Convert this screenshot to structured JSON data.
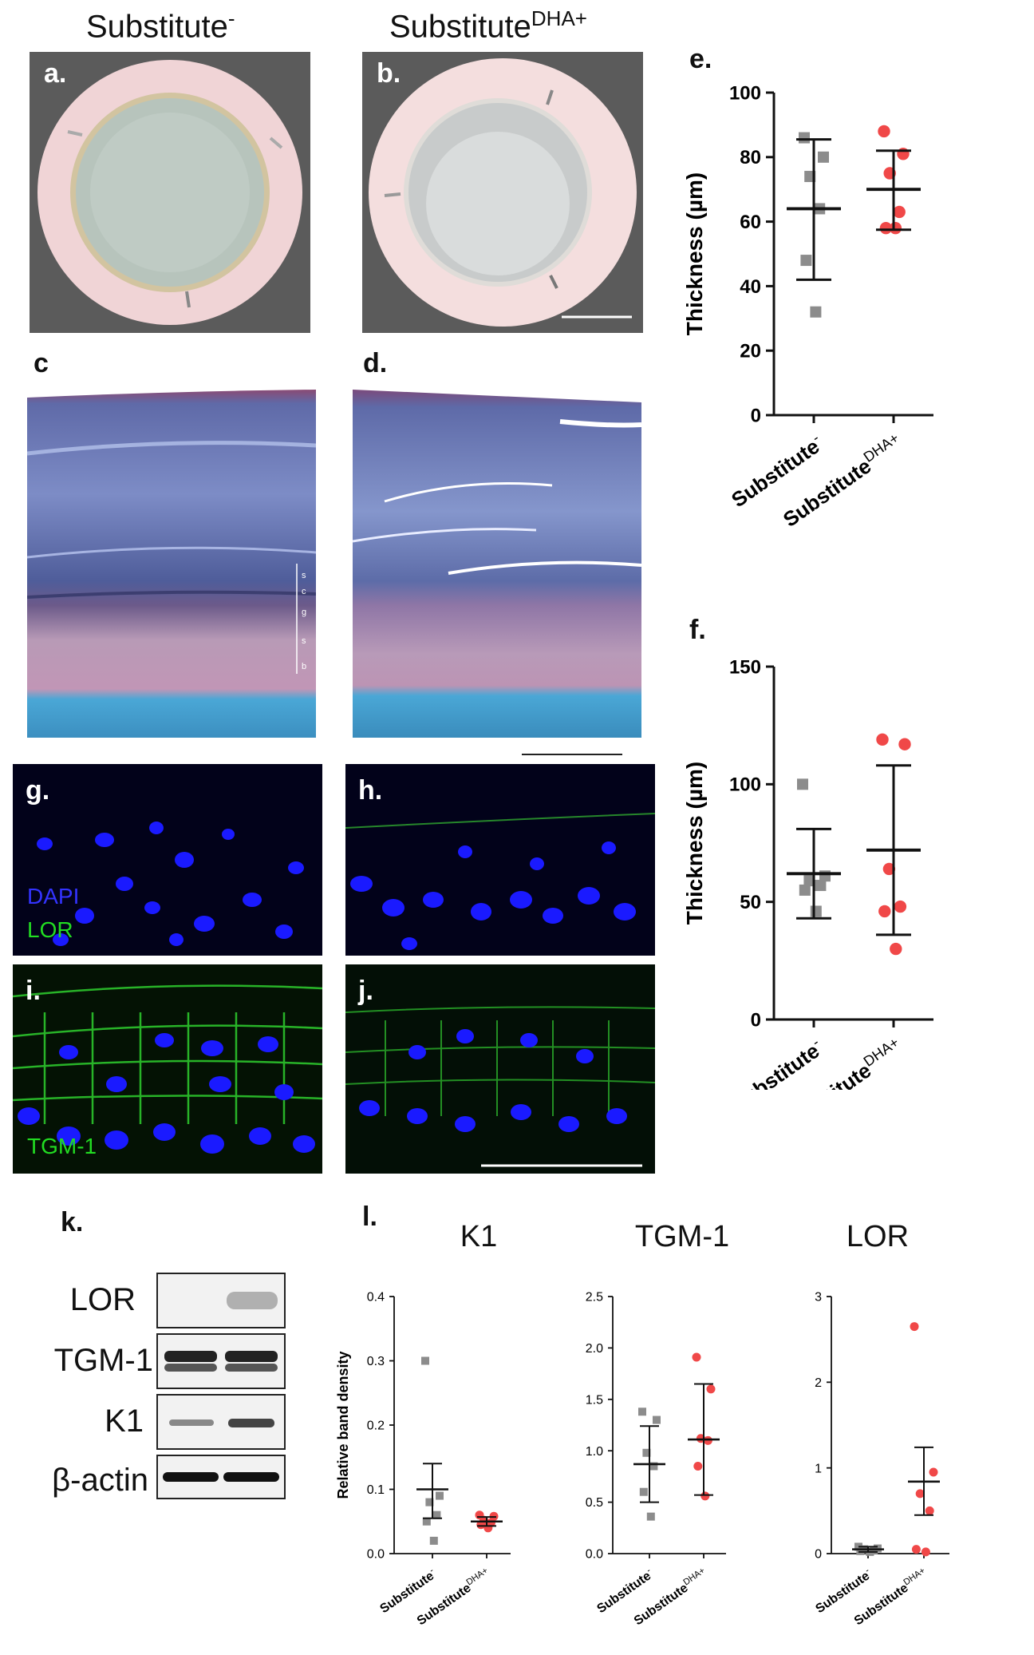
{
  "columns": {
    "left": {
      "base": "Substitute",
      "sup": "-"
    },
    "right": {
      "base": "Substitute",
      "sup": "DHA+"
    }
  },
  "panels": {
    "a": "a.",
    "b": "b.",
    "c": "c",
    "d": "d.",
    "e": "e.",
    "f": "f.",
    "g": "g.",
    "h": "h.",
    "i": "i.",
    "j": "j.",
    "k": "k.",
    "l": "l."
  },
  "histology_layers": [
    "s",
    "c",
    "g",
    "s",
    "b"
  ],
  "fluorescence_labels": {
    "dapi": "DAPI",
    "lor": "LOR",
    "tgm1": "TGM-1"
  },
  "western_blot": {
    "bands": [
      "LOR",
      "TGM-1",
      "K1",
      "β-actin"
    ]
  },
  "colors": {
    "substitute_minus": "#8c8c8c",
    "substitute_dha": "#f04848",
    "photo_bg": "#5b5b5b",
    "nuclei": "#1a1aff",
    "membrane": "#2fd02f",
    "label_green": "#22dd22",
    "label_blue": "#3333ff"
  },
  "chart_data": [
    {
      "id": "e",
      "type": "scatter",
      "ylabel": "Thickness (µm)",
      "ylim": [
        0,
        100
      ],
      "yticks": [
        0,
        20,
        40,
        60,
        80,
        100
      ],
      "categories": [
        "Substitute-",
        "SubstituteDHA+"
      ],
      "series": [
        {
          "values": [
            86,
            80,
            74,
            64,
            48,
            32
          ],
          "mean": 64,
          "sd_low": 42,
          "sd_high": 85.5
        },
        {
          "values": [
            88,
            81,
            75,
            63,
            58,
            58
          ],
          "mean": 70,
          "sd_low": 57.5,
          "sd_high": 82
        }
      ]
    },
    {
      "id": "f",
      "type": "scatter",
      "ylabel": "Thickness (µm)",
      "ylim": [
        0,
        150
      ],
      "yticks": [
        0,
        50,
        100,
        150
      ],
      "categories": [
        "Substitute-",
        "SubstituteDHA+"
      ],
      "series": [
        {
          "values": [
            100,
            61,
            59,
            57,
            55,
            46
          ],
          "mean": 62,
          "sd_low": 43,
          "sd_high": 81
        },
        {
          "values": [
            119,
            117,
            64,
            48,
            46,
            30
          ],
          "mean": 72,
          "sd_low": 36,
          "sd_high": 108
        }
      ]
    },
    {
      "id": "l1",
      "type": "scatter",
      "title": "K1",
      "ylabel": "Relative band density",
      "ylim": [
        0,
        0.4
      ],
      "yticks": [
        "0.0",
        "0.1",
        "0.2",
        "0.3",
        "0.4"
      ],
      "categories": [
        "Substitute-",
        "SubstituteDHA+"
      ],
      "series": [
        {
          "values": [
            0.3,
            0.09,
            0.08,
            0.06,
            0.05,
            0.02
          ],
          "mean": 0.1,
          "sd_low": 0.055,
          "sd_high": 0.14
        },
        {
          "values": [
            0.06,
            0.058,
            0.052,
            0.048,
            0.045,
            0.04
          ],
          "mean": 0.05,
          "sd_low": 0.043,
          "sd_high": 0.057
        }
      ]
    },
    {
      "id": "l2",
      "type": "scatter",
      "title": "TGM-1",
      "ylim": [
        0,
        2.5
      ],
      "yticks": [
        "0.0",
        "0.5",
        "1.0",
        "1.5",
        "2.0",
        "2.5"
      ],
      "categories": [
        "Substitute-",
        "SubstituteDHA+"
      ],
      "series": [
        {
          "values": [
            1.38,
            1.3,
            0.98,
            0.85,
            0.6,
            0.36
          ],
          "mean": 0.87,
          "sd_low": 0.5,
          "sd_high": 1.24
        },
        {
          "values": [
            1.91,
            1.6,
            1.12,
            1.1,
            0.85,
            0.56
          ],
          "mean": 1.11,
          "sd_low": 0.57,
          "sd_high": 1.65
        }
      ]
    },
    {
      "id": "l3",
      "type": "scatter",
      "title": "LOR",
      "ylim": [
        0,
        3
      ],
      "yticks": [
        "0",
        "1",
        "2",
        "3"
      ],
      "categories": [
        "Substitute-",
        "SubstituteDHA+"
      ],
      "series": [
        {
          "values": [
            0.08,
            0.06,
            0.05,
            0.04,
            0.03,
            0.02
          ],
          "mean": 0.05,
          "sd_low": 0.02,
          "sd_high": 0.08
        },
        {
          "values": [
            2.65,
            0.95,
            0.7,
            0.5,
            0.05,
            0.02
          ],
          "mean": 0.84,
          "sd_low": 0.45,
          "sd_high": 1.24
        }
      ]
    }
  ]
}
